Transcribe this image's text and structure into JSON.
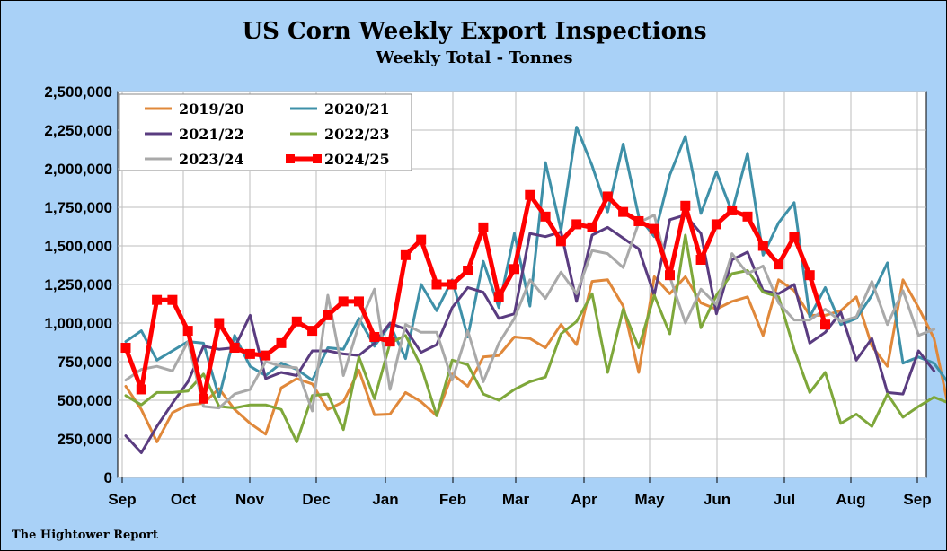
{
  "chart_data": {
    "type": "line",
    "title": "US Corn Weekly Export Inspections",
    "subtitle": "Weekly Total - Tonnes",
    "source": "The Hightower Report",
    "ylim": [
      0,
      2500000
    ],
    "yticks": [
      "0",
      "250,000",
      "500,000",
      "750,000",
      "1,000,000",
      "1,250,000",
      "1,500,000",
      "1,750,000",
      "2,000,000",
      "2,250,000",
      "2,500,000"
    ],
    "xticks": [
      "Sep",
      "Oct",
      "Nov",
      "Dec",
      "Jan",
      "Feb",
      "Mar",
      "Apr",
      "May",
      "Jun",
      "Jul",
      "Aug",
      "Sep"
    ],
    "grid": true,
    "legend_placement": "top-left",
    "series": [
      {
        "name": "2019/20",
        "color": "#e0883a",
        "values": [
          590000,
          440000,
          230000,
          420000,
          470000,
          480000,
          575000,
          440000,
          350000,
          280000,
          580000,
          640000,
          605000,
          440000,
          490000,
          695000,
          405000,
          410000,
          550000,
          490000,
          400000,
          670000,
          590000,
          780000,
          790000,
          910000,
          900000,
          840000,
          990000,
          860000,
          1270000,
          1280000,
          1110000,
          680000,
          1300000,
          1190000,
          1300000,
          1130000,
          1090000,
          1140000,
          1170000,
          920000,
          1280000,
          1210000,
          1050000,
          1050000,
          1080000,
          1170000,
          850000,
          720000,
          1280000,
          1100000,
          900000,
          420000
        ]
      },
      {
        "name": "2020/21",
        "color": "#3e90a8",
        "values": [
          880000,
          950000,
          760000,
          820000,
          880000,
          870000,
          520000,
          920000,
          720000,
          660000,
          740000,
          700000,
          630000,
          840000,
          830000,
          1030000,
          850000,
          990000,
          770000,
          1250000,
          1080000,
          1280000,
          910000,
          1400000,
          1100000,
          1580000,
          1110000,
          2040000,
          1600000,
          2270000,
          2020000,
          1720000,
          2160000,
          1690000,
          1560000,
          1960000,
          2210000,
          1710000,
          1980000,
          1720000,
          2100000,
          1440000,
          1650000,
          1780000,
          1040000,
          1230000,
          990000,
          1030000,
          1180000,
          1390000,
          740000,
          780000,
          740000,
          600000
        ]
      },
      {
        "name": "2021/22",
        "color": "#5a3c80",
        "values": [
          270000,
          160000,
          330000,
          480000,
          620000,
          850000,
          830000,
          840000,
          1050000,
          640000,
          680000,
          660000,
          820000,
          820000,
          800000,
          790000,
          870000,
          1000000,
          960000,
          810000,
          860000,
          1100000,
          1230000,
          1200000,
          1030000,
          1060000,
          1580000,
          1560000,
          1590000,
          1140000,
          1570000,
          1620000,
          1550000,
          1480000,
          1180000,
          1670000,
          1700000,
          1580000,
          1060000,
          1410000,
          1460000,
          1210000,
          1190000,
          1250000,
          870000,
          940000,
          1070000,
          760000,
          900000,
          550000,
          540000,
          820000,
          690000
        ]
      },
      {
        "name": "2022/23",
        "color": "#7ea73a",
        "values": [
          530000,
          470000,
          550000,
          550000,
          560000,
          670000,
          460000,
          450000,
          470000,
          470000,
          440000,
          230000,
          530000,
          540000,
          310000,
          780000,
          510000,
          870000,
          920000,
          720000,
          400000,
          760000,
          730000,
          540000,
          500000,
          570000,
          620000,
          650000,
          930000,
          1010000,
          1190000,
          680000,
          1090000,
          840000,
          1180000,
          930000,
          1570000,
          970000,
          1180000,
          1320000,
          1340000,
          1200000,
          1170000,
          830000,
          550000,
          680000,
          350000,
          410000,
          330000,
          540000,
          390000,
          460000,
          520000,
          480000
        ]
      },
      {
        "name": "2023/24",
        "color": "#a9a9a9",
        "values": [
          630000,
          700000,
          720000,
          690000,
          880000,
          460000,
          450000,
          540000,
          570000,
          750000,
          720000,
          710000,
          430000,
          1180000,
          660000,
          990000,
          1220000,
          570000,
          990000,
          940000,
          940000,
          630000,
          950000,
          620000,
          870000,
          1030000,
          1280000,
          1160000,
          1330000,
          1190000,
          1470000,
          1450000,
          1360000,
          1650000,
          1700000,
          1300000,
          1000000,
          1220000,
          1120000,
          1450000,
          1320000,
          1370000,
          1130000,
          1020000,
          1020000,
          1090000,
          1010000,
          1040000,
          1270000,
          990000,
          1210000,
          920000,
          960000
        ]
      },
      {
        "name": "2024/25",
        "color": "#ff0000",
        "values": [
          840000,
          570000,
          1150000,
          1150000,
          950000,
          510000,
          1000000,
          840000,
          800000,
          790000,
          870000,
          1010000,
          950000,
          1050000,
          1140000,
          1140000,
          910000,
          880000,
          1440000,
          1540000,
          1250000,
          1250000,
          1340000,
          1620000,
          1170000,
          1350000,
          1830000,
          1690000,
          1530000,
          1640000,
          1620000,
          1820000,
          1720000,
          1660000,
          1610000,
          1310000,
          1760000,
          1410000,
          1640000,
          1730000,
          1690000,
          1500000,
          1380000,
          1560000,
          1310000,
          990000
        ]
      }
    ]
  }
}
